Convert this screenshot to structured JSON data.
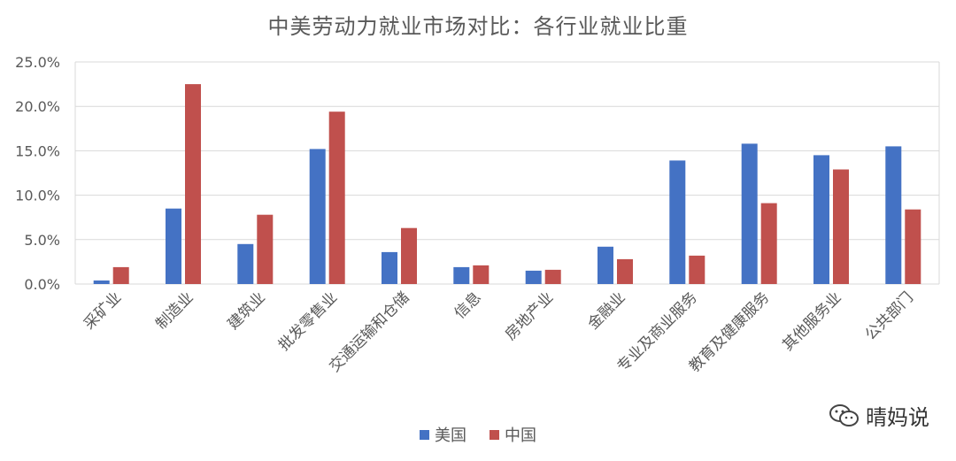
{
  "chart_data": {
    "type": "bar",
    "title": "中美劳动力就业市场对比：各行业就业比重",
    "categories": [
      "采矿业",
      "制造业",
      "建筑业",
      "批发零售业",
      "交通运输和仓储",
      "信息",
      "房地产业",
      "金融业",
      "专业及商业服务",
      "教育及健康服务",
      "其他服务业",
      "公共部门"
    ],
    "series": [
      {
        "name": "美国",
        "color": "#4472C4",
        "values": [
          0.4,
          8.5,
          4.5,
          15.2,
          3.6,
          1.9,
          1.5,
          4.2,
          13.9,
          15.8,
          14.5,
          15.5
        ]
      },
      {
        "name": "中国",
        "color": "#C0504D",
        "values": [
          1.9,
          22.5,
          7.8,
          19.4,
          6.3,
          2.1,
          1.6,
          2.8,
          3.2,
          9.1,
          12.9,
          8.4
        ]
      }
    ],
    "ylim": [
      0,
      25
    ],
    "yticks": [
      "0.0%",
      "5.0%",
      "10.0%",
      "15.0%",
      "20.0%",
      "25.0%"
    ],
    "grid": true,
    "legend_position": "bottom"
  },
  "watermark": {
    "icon": "wechat-icon",
    "text": "晴妈说"
  }
}
